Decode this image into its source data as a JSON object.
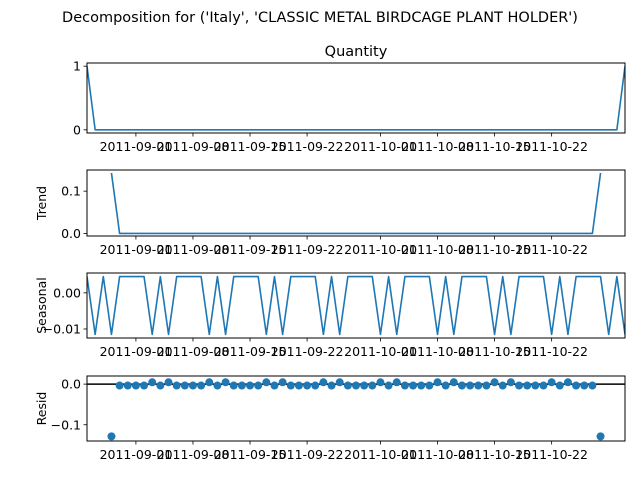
{
  "figure": {
    "suptitle": "Decomposition for ('Italy', 'CLASSIC METAL BIRDCAGE PLANT HOLDER')"
  },
  "colors": {
    "line": "#1f77b4",
    "axis": "#000000",
    "zero_line": "#000000"
  },
  "chart_data": [
    {
      "id": "observed",
      "type": "line",
      "title": "Quantity",
      "ylabel": "",
      "x_start": "2011-08-26",
      "x_end": "2011-10-31",
      "xlim": [
        "2011-08-26",
        "2011-10-31"
      ],
      "ylim": [
        -0.05,
        1.05
      ],
      "yticks": [
        0,
        1
      ],
      "ytick_labels": [
        "0",
        "1"
      ],
      "xticks": [
        "2011-09-01",
        "2011-09-08",
        "2011-09-15",
        "2011-09-22",
        "2011-10-01",
        "2011-10-08",
        "2011-10-15",
        "2011-10-22"
      ],
      "xtick_labels": [
        "2011-09-01",
        "2011-09-08",
        "2011-09-15",
        "2011-09-22",
        "2011-10-01",
        "2011-10-08",
        "2011-10-15",
        "2011-10-22"
      ],
      "points": [
        {
          "x": "2011-08-26",
          "y": 1
        },
        {
          "x": "2011-08-27",
          "y": 0
        },
        {
          "x": "2011-10-30",
          "y": 0
        },
        {
          "x": "2011-10-31",
          "y": 1
        }
      ]
    },
    {
      "id": "trend",
      "type": "line",
      "title": "",
      "ylabel": "Trend",
      "xlim": [
        "2011-08-26",
        "2011-10-31"
      ],
      "ylim": [
        -0.006,
        0.15
      ],
      "yticks": [
        0,
        0.1
      ],
      "ytick_labels": [
        "0.0",
        "0.1"
      ],
      "xticks": [
        "2011-09-01",
        "2011-09-08",
        "2011-09-15",
        "2011-09-22",
        "2011-10-01",
        "2011-10-08",
        "2011-10-15",
        "2011-10-22"
      ],
      "xtick_labels": [
        "2011-09-01",
        "2011-09-08",
        "2011-09-15",
        "2011-09-22",
        "2011-10-01",
        "2011-10-08",
        "2011-10-15",
        "2011-10-22"
      ],
      "points": [
        {
          "x": "2011-08-29",
          "y": 0.1429
        },
        {
          "x": "2011-08-30",
          "y": 0
        },
        {
          "x": "2011-10-27",
          "y": 0
        },
        {
          "x": "2011-10-28",
          "y": 0.1429
        }
      ]
    },
    {
      "id": "seasonal",
      "type": "line",
      "title": "",
      "ylabel": "Seasonal",
      "xlim": [
        "2011-08-26",
        "2011-10-31"
      ],
      "ylim": [
        -0.0125,
        0.0055
      ],
      "yticks": [
        0.0,
        -0.01
      ],
      "ytick_labels": [
        "0.00",
        "−0.01"
      ],
      "xticks": [
        "2011-09-01",
        "2011-09-08",
        "2011-09-15",
        "2011-09-22",
        "2011-10-01",
        "2011-10-08",
        "2011-10-15",
        "2011-10-22"
      ],
      "xtick_labels": [
        "2011-09-01",
        "2011-09-08",
        "2011-09-15",
        "2011-09-22",
        "2011-10-01",
        "2011-10-08",
        "2011-10-15",
        "2011-10-22"
      ],
      "start": "2011-08-26",
      "period_values": [
        0.0045,
        -0.0115,
        0.0045,
        -0.0115,
        0.0045,
        0.0045,
        0.0045
      ]
    },
    {
      "id": "resid",
      "type": "scatter",
      "title": "",
      "ylabel": "Resid",
      "xlim": [
        "2011-08-26",
        "2011-10-31"
      ],
      "ylim": [
        -0.14,
        0.02
      ],
      "yticks": [
        0.0,
        -0.1
      ],
      "ytick_labels": [
        "0.0",
        "−0.1"
      ],
      "xticks": [
        "2011-09-01",
        "2011-09-08",
        "2011-09-15",
        "2011-09-22",
        "2011-10-01",
        "2011-10-08",
        "2011-10-15",
        "2011-10-22"
      ],
      "xtick_labels": [
        "2011-09-01",
        "2011-09-08",
        "2011-09-15",
        "2011-09-22",
        "2011-10-01",
        "2011-10-08",
        "2011-10-15",
        "2011-10-22"
      ],
      "zero_line": 0,
      "points": [
        {
          "x": "2011-08-29",
          "y": -0.1286
        },
        {
          "x": "2011-08-30",
          "y": -0.0035
        },
        {
          "x": "2011-08-31",
          "y": -0.0035
        },
        {
          "x": "2011-09-01",
          "y": -0.0035
        },
        {
          "x": "2011-09-02",
          "y": -0.0035
        },
        {
          "x": "2011-09-03",
          "y": 0.0045
        },
        {
          "x": "2011-09-04",
          "y": -0.0035
        },
        {
          "x": "2011-09-05",
          "y": 0.0045
        },
        {
          "x": "2011-09-06",
          "y": -0.0035
        },
        {
          "x": "2011-09-07",
          "y": -0.0035
        },
        {
          "x": "2011-09-08",
          "y": -0.0035
        },
        {
          "x": "2011-09-09",
          "y": -0.0035
        },
        {
          "x": "2011-09-10",
          "y": 0.0045
        },
        {
          "x": "2011-09-11",
          "y": -0.0035
        },
        {
          "x": "2011-09-12",
          "y": 0.0045
        },
        {
          "x": "2011-09-13",
          "y": -0.0035
        },
        {
          "x": "2011-09-14",
          "y": -0.0035
        },
        {
          "x": "2011-09-15",
          "y": -0.0035
        },
        {
          "x": "2011-09-16",
          "y": -0.0035
        },
        {
          "x": "2011-09-17",
          "y": 0.0045
        },
        {
          "x": "2011-09-18",
          "y": -0.0035
        },
        {
          "x": "2011-09-19",
          "y": 0.0045
        },
        {
          "x": "2011-09-20",
          "y": -0.0035
        },
        {
          "x": "2011-09-21",
          "y": -0.0035
        },
        {
          "x": "2011-09-22",
          "y": -0.0035
        },
        {
          "x": "2011-09-23",
          "y": -0.0035
        },
        {
          "x": "2011-09-24",
          "y": 0.0045
        },
        {
          "x": "2011-09-25",
          "y": -0.0035
        },
        {
          "x": "2011-09-26",
          "y": 0.0045
        },
        {
          "x": "2011-09-27",
          "y": -0.0035
        },
        {
          "x": "2011-09-28",
          "y": -0.0035
        },
        {
          "x": "2011-09-29",
          "y": -0.0035
        },
        {
          "x": "2011-09-30",
          "y": -0.0035
        },
        {
          "x": "2011-10-01",
          "y": 0.0045
        },
        {
          "x": "2011-10-02",
          "y": -0.0035
        },
        {
          "x": "2011-10-03",
          "y": 0.0045
        },
        {
          "x": "2011-10-04",
          "y": -0.0035
        },
        {
          "x": "2011-10-05",
          "y": -0.0035
        },
        {
          "x": "2011-10-06",
          "y": -0.0035
        },
        {
          "x": "2011-10-07",
          "y": -0.0035
        },
        {
          "x": "2011-10-08",
          "y": 0.0045
        },
        {
          "x": "2011-10-09",
          "y": -0.0035
        },
        {
          "x": "2011-10-10",
          "y": 0.0045
        },
        {
          "x": "2011-10-11",
          "y": -0.0035
        },
        {
          "x": "2011-10-12",
          "y": -0.0035
        },
        {
          "x": "2011-10-13",
          "y": -0.0035
        },
        {
          "x": "2011-10-14",
          "y": -0.0035
        },
        {
          "x": "2011-10-15",
          "y": 0.0045
        },
        {
          "x": "2011-10-16",
          "y": -0.0035
        },
        {
          "x": "2011-10-17",
          "y": 0.0045
        },
        {
          "x": "2011-10-18",
          "y": -0.0035
        },
        {
          "x": "2011-10-19",
          "y": -0.0035
        },
        {
          "x": "2011-10-20",
          "y": -0.0035
        },
        {
          "x": "2011-10-21",
          "y": -0.0035
        },
        {
          "x": "2011-10-22",
          "y": 0.0045
        },
        {
          "x": "2011-10-23",
          "y": -0.0035
        },
        {
          "x": "2011-10-24",
          "y": 0.0045
        },
        {
          "x": "2011-10-25",
          "y": -0.0035
        },
        {
          "x": "2011-10-26",
          "y": -0.0035
        },
        {
          "x": "2011-10-27",
          "y": -0.0035
        },
        {
          "x": "2011-10-28",
          "y": -0.1286
        }
      ]
    }
  ]
}
